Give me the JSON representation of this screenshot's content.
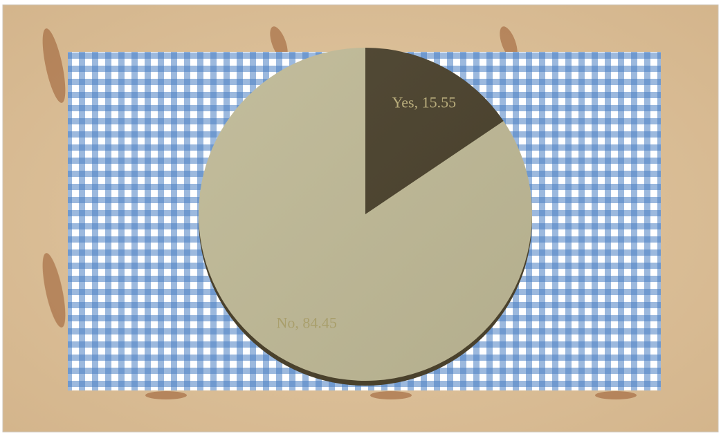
{
  "chart_data": {
    "type": "pie",
    "categories": [
      "Yes",
      "No"
    ],
    "values": [
      15.55,
      84.45
    ],
    "value_labels": [
      "Yes, 15.55",
      "No, 84.45"
    ],
    "colors": [
      "#4a412c",
      "#bfb996"
    ]
  }
}
